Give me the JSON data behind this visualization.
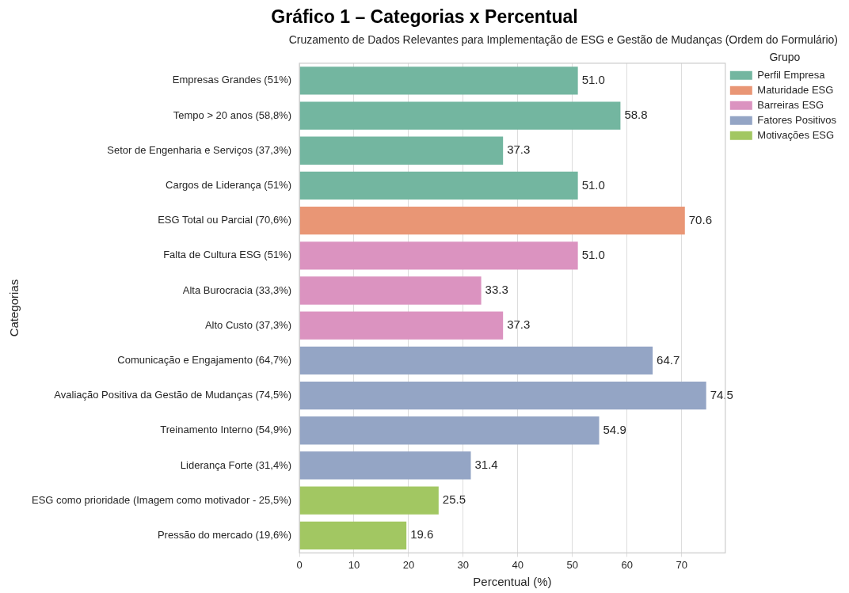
{
  "chart_data": {
    "type": "bar",
    "orientation": "horizontal",
    "title": "Gráfico 1 – Categorias x Percentual",
    "subtitle": "Cruzamento de Dados Relevantes para Implementação de ESG e Gestão de Mudanças (Ordem do Formulário)",
    "xlabel": "Percentual (%)",
    "ylabel": "Categorias",
    "legend_title": "Grupo",
    "legend": "top right",
    "grid": "x",
    "xlim": [
      0,
      78
    ],
    "xticks": [
      0,
      10,
      20,
      30,
      40,
      50,
      60,
      70
    ],
    "categories": [
      "Empresas Grandes (51%)",
      "Tempo > 20 anos (58,8%)",
      "Setor de Engenharia e Serviços (37,3%)",
      "Cargos de Liderança (51%)",
      "ESG Total ou Parcial (70,6%)",
      "Falta de Cultura ESG (51%)",
      "Alta Burocracia (33,3%)",
      "Alto Custo (37,3%)",
      "Comunicação e Engajamento (64,7%)",
      "Avaliação Positiva da Gestão de Mudanças (74,5%)",
      "Treinamento Interno (54,9%)",
      "Liderança Forte (31,4%)",
      "ESG como prioridade (Imagem como motivador - 25,5%)",
      "Pressão do mercado (19,6%)"
    ],
    "series": [
      {
        "name": "Perfil Empresa",
        "color": "#73b6a0",
        "values": [
          51.0,
          58.8,
          37.3,
          51.0,
          null,
          null,
          null,
          null,
          null,
          null,
          null,
          null,
          null,
          null
        ],
        "value_labels": [
          "51.0",
          "58.8",
          "37.3",
          "51.0",
          null,
          null,
          null,
          null,
          null,
          null,
          null,
          null,
          null,
          null
        ]
      },
      {
        "name": "Maturidade ESG",
        "color": "#e99675",
        "values": [
          null,
          null,
          null,
          null,
          70.6,
          null,
          null,
          null,
          null,
          null,
          null,
          null,
          null,
          null
        ],
        "value_labels": [
          null,
          null,
          null,
          null,
          "70.6",
          null,
          null,
          null,
          null,
          null,
          null,
          null,
          null,
          null
        ]
      },
      {
        "name": "Barreiras ESG",
        "color": "#db93c0",
        "values": [
          null,
          null,
          null,
          null,
          null,
          51.0,
          33.3,
          37.3,
          null,
          null,
          null,
          null,
          null,
          null
        ],
        "value_labels": [
          null,
          null,
          null,
          null,
          null,
          "51.0",
          "33.3",
          "37.3",
          null,
          null,
          null,
          null,
          null,
          null
        ]
      },
      {
        "name": "Fatores Positivos",
        "color": "#94a5c5",
        "values": [
          null,
          null,
          null,
          null,
          null,
          null,
          null,
          null,
          64.7,
          74.5,
          54.9,
          31.4,
          null,
          null
        ],
        "value_labels": [
          null,
          null,
          null,
          null,
          null,
          null,
          null,
          null,
          "64.7",
          "74.5",
          "54.9",
          "31.4",
          null,
          null
        ]
      },
      {
        "name": "Motivações ESG",
        "color": "#a2c762",
        "values": [
          null,
          null,
          null,
          null,
          null,
          null,
          null,
          null,
          null,
          null,
          null,
          null,
          25.5,
          19.6
        ],
        "value_labels": [
          null,
          null,
          null,
          null,
          null,
          null,
          null,
          null,
          null,
          null,
          null,
          null,
          "25.5",
          "19.6"
        ]
      }
    ]
  }
}
